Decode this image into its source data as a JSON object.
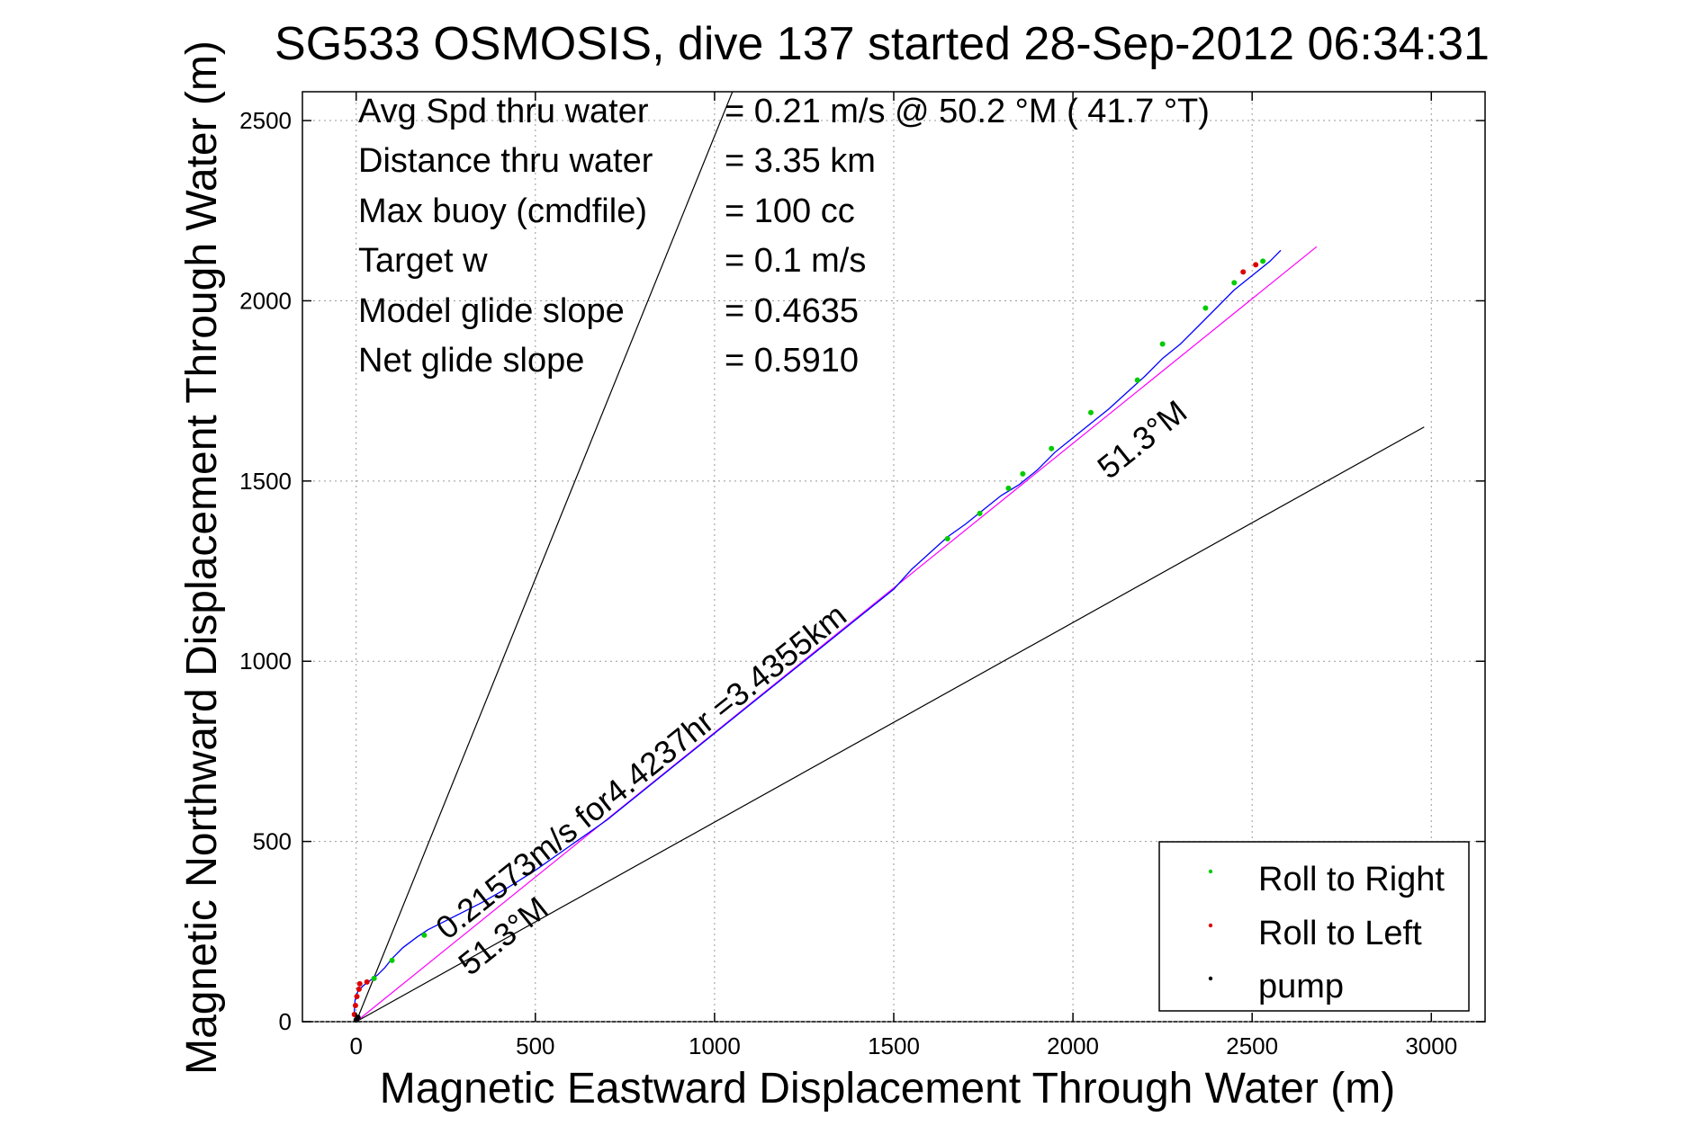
{
  "title": "SG533 OSMOSIS, dive 137 started 28-Sep-2012 06:34:31",
  "xlabel": "Magnetic Eastward Displacement Through Water (m)",
  "ylabel": "Magnetic Northward Displacement Through Water (m)",
  "info_lines": [
    {
      "label": "Avg Spd thru water",
      "value": "=  0.21 m/s @  50.2 °M ( 41.7 °T)"
    },
    {
      "label": "Distance thru water",
      "value": "=  3.35 km"
    },
    {
      "label": "Max buoy (cmdfile)",
      "value": "= 100 cc"
    },
    {
      "label": "Target w",
      "value": "= 0.1 m/s"
    },
    {
      "label": "Model glide slope",
      "value": "= 0.4635"
    },
    {
      "label": "Net glide slope",
      "value": "= 0.5910"
    }
  ],
  "annotations": {
    "speed_label": "0.21573m/s for4.4237hr =3.4355km",
    "heading_upper": "51.3°M",
    "heading_lower": "51.3°M"
  },
  "legend": {
    "placement": "bottom-right",
    "items": [
      {
        "label": "Roll to Right",
        "color": "#00cc00"
      },
      {
        "label": "Roll to Left",
        "color": "#dd0000"
      },
      {
        "label": "pump",
        "color": "#000000"
      }
    ]
  },
  "colors": {
    "track": "#0000ff",
    "net_line": "#ff00ff",
    "guide_lines": "#000000",
    "grid": "#999999"
  },
  "chart_data": {
    "type": "line",
    "xlim": [
      -150,
      3150
    ],
    "ylim": [
      0,
      2580
    ],
    "xticks": [
      0,
      500,
      1000,
      1500,
      2000,
      2500,
      3000
    ],
    "yticks": [
      0,
      500,
      1000,
      1500,
      2000,
      2500
    ],
    "grid": true,
    "track": {
      "x": [
        0,
        -5,
        -3,
        5,
        20,
        40,
        60,
        80,
        100,
        130,
        170,
        200,
        240,
        290,
        350,
        420,
        500,
        600,
        700,
        800,
        900,
        1000,
        1100,
        1200,
        1300,
        1400,
        1500,
        1550,
        1600,
        1650,
        1700,
        1750,
        1800,
        1850,
        1900,
        1950,
        2000,
        2050,
        2100,
        2150,
        2200,
        2250,
        2300,
        2350,
        2400,
        2450,
        2500,
        2550,
        2580
      ],
      "y": [
        0,
        30,
        60,
        85,
        100,
        115,
        130,
        150,
        175,
        205,
        235,
        255,
        275,
        300,
        330,
        370,
        420,
        490,
        560,
        640,
        720,
        800,
        880,
        960,
        1040,
        1120,
        1200,
        1255,
        1300,
        1345,
        1380,
        1420,
        1460,
        1490,
        1530,
        1580,
        1620,
        1660,
        1700,
        1745,
        1790,
        1840,
        1880,
        1930,
        1980,
        2030,
        2070,
        2110,
        2140
      ]
    },
    "net_line": {
      "x": [
        0,
        2680
      ],
      "y": [
        0,
        2150
      ]
    },
    "guide_lines": [
      {
        "x": [
          0,
          1050
        ],
        "y": [
          0,
          2580
        ]
      },
      {
        "x": [
          0,
          2980
        ],
        "y": [
          0,
          1650
        ]
      }
    ],
    "roll_right": {
      "x": [
        50,
        100,
        190,
        1650,
        1740,
        1820,
        1860,
        1940,
        2050,
        2180,
        2250,
        2370,
        2450,
        2530
      ],
      "y": [
        120,
        170,
        240,
        1340,
        1410,
        1480,
        1520,
        1590,
        1690,
        1780,
        1880,
        1980,
        2050,
        2110
      ]
    },
    "roll_left": {
      "x": [
        -5,
        -2,
        2,
        8,
        10,
        30,
        2475,
        2510
      ],
      "y": [
        20,
        45,
        70,
        90,
        105,
        110,
        2080,
        2100
      ]
    },
    "pump": {
      "x": [
        0,
        5
      ],
      "y": [
        5,
        12
      ]
    }
  }
}
